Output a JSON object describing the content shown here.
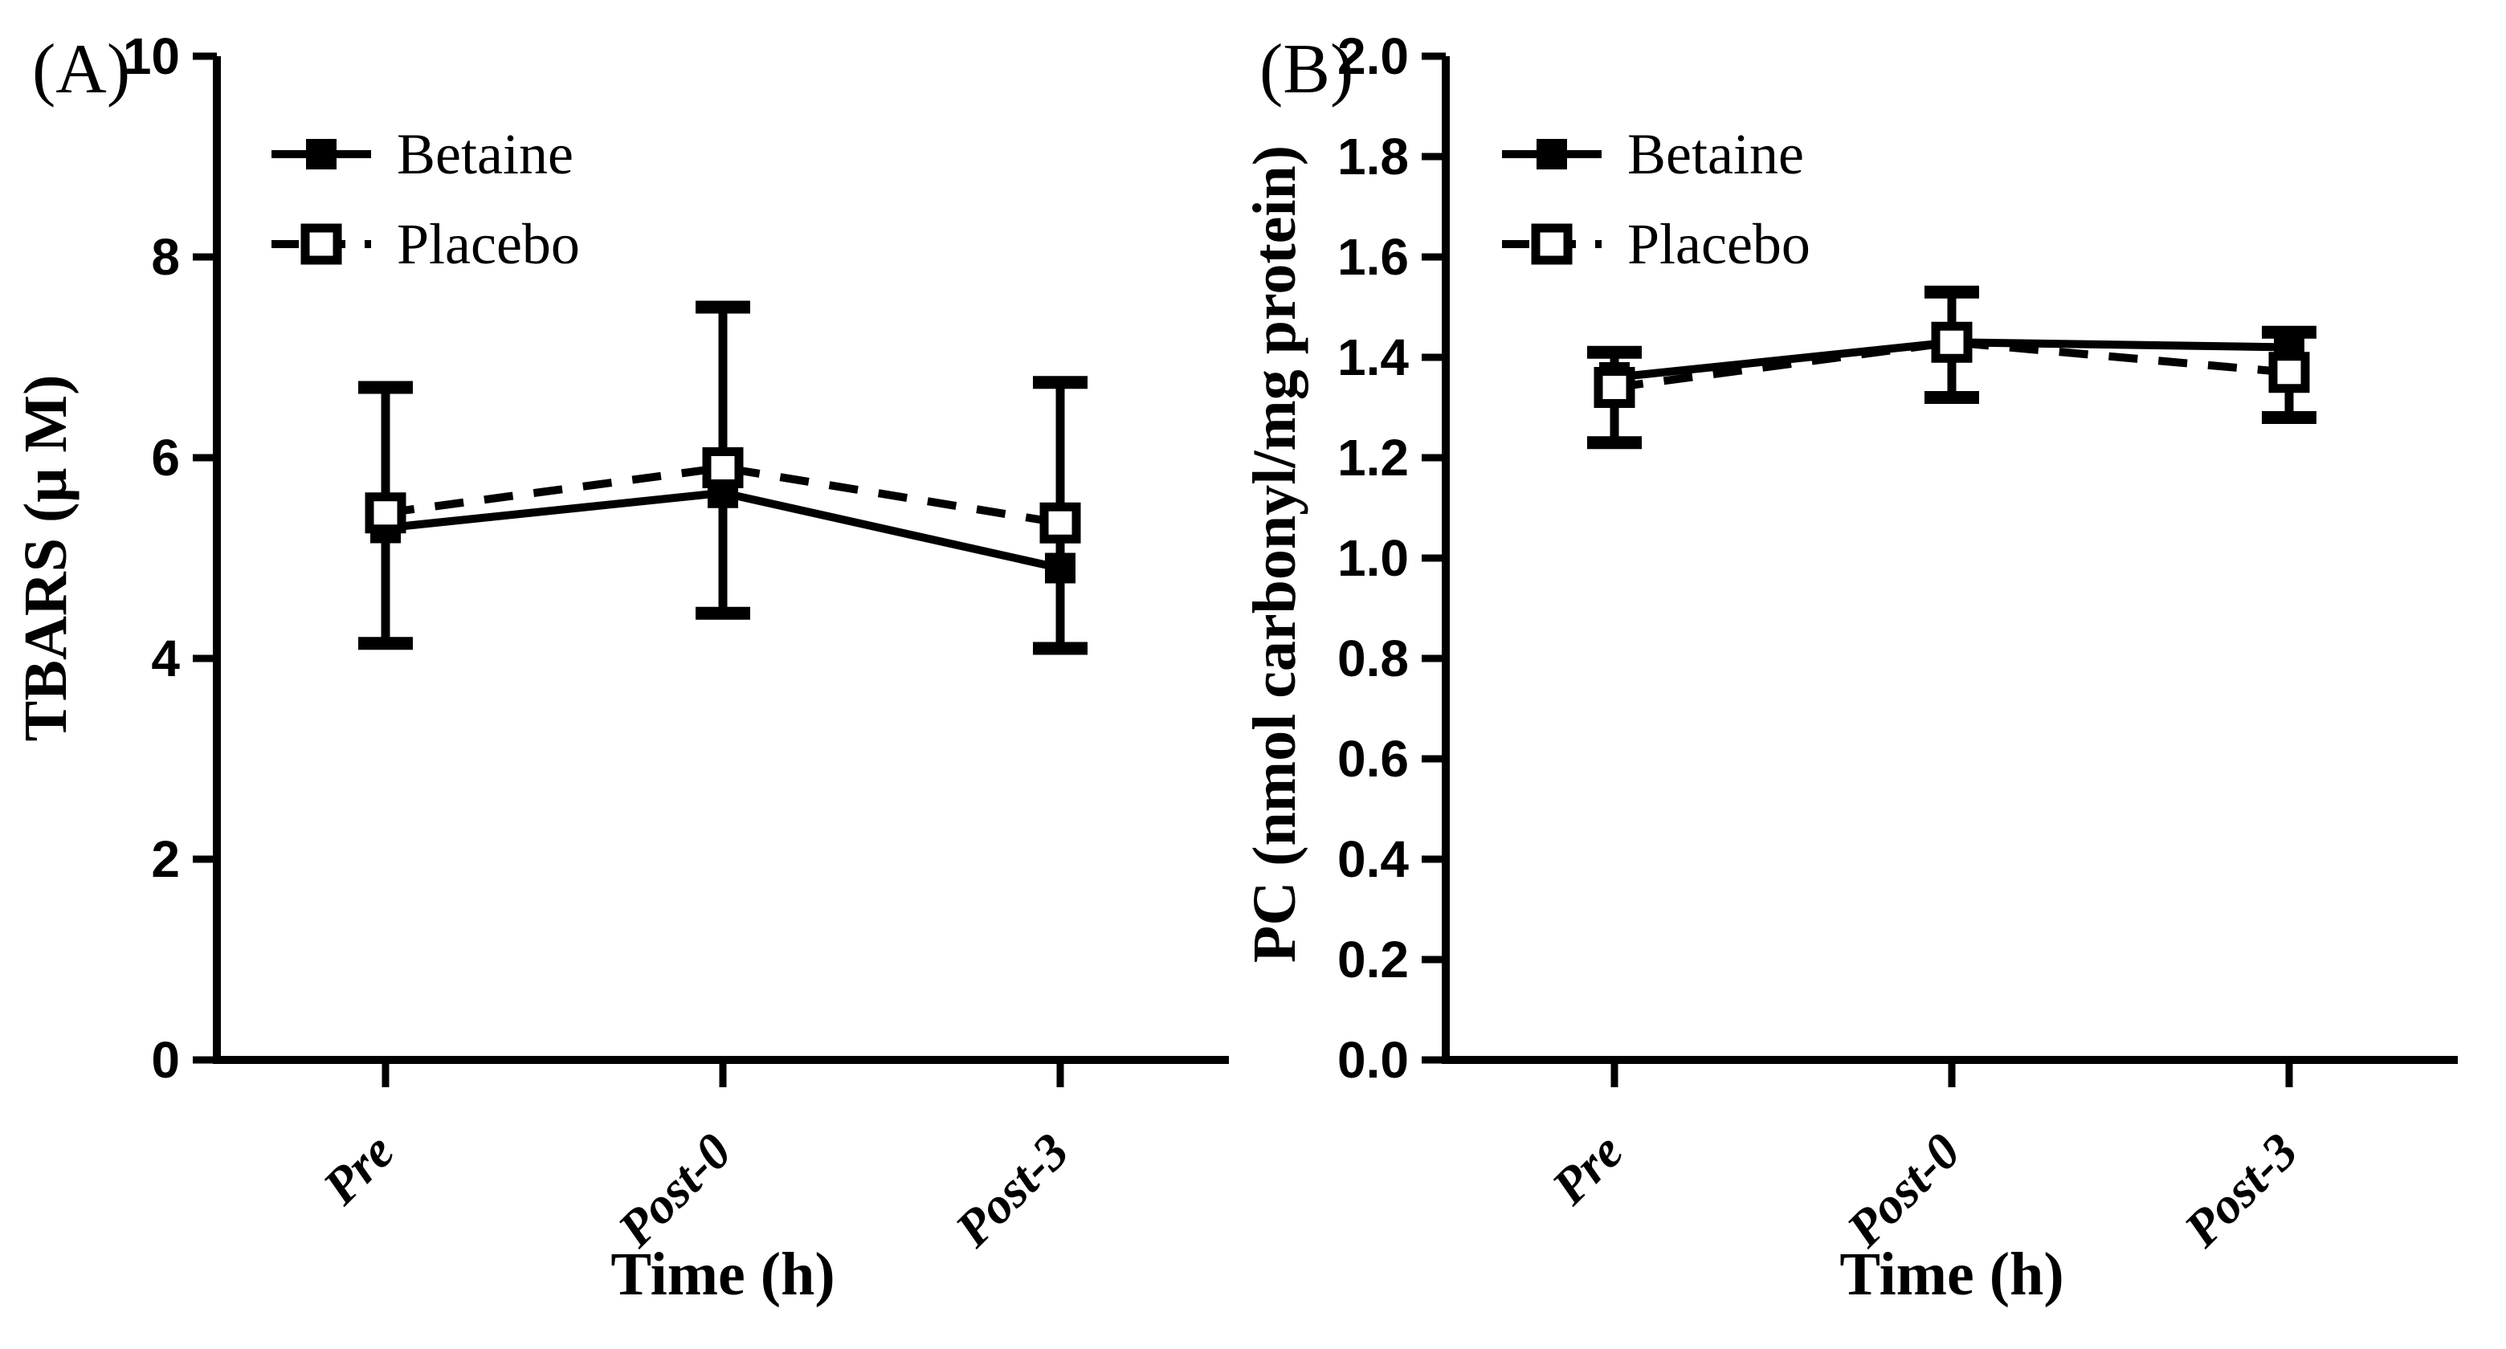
{
  "figure": {
    "background_color": "#ffffff",
    "ink_color": "#000000",
    "description": "Two-panel line chart comparing Betaine and Placebo over time"
  },
  "chart_data": [
    {
      "type": "line",
      "panel_label": "(A)",
      "xlabel": "Time (h)",
      "ylabel": "TBARS (μ M)",
      "categories": [
        "Pre",
        "Post-0",
        "Post-3"
      ],
      "ylim": [
        0,
        10
      ],
      "yticks": [
        0,
        2,
        4,
        6,
        8,
        10
      ],
      "ytick_labels": [
        "0",
        "2",
        "4",
        "6",
        "8",
        "10"
      ],
      "grid": false,
      "legend_position": "top-left-inside",
      "legend_entries": [
        "Betaine",
        "Placebo"
      ],
      "series": [
        {
          "name": "Betaine",
          "values": [
            5.3,
            5.65,
            4.9
          ],
          "marker": "filled-square",
          "line": "solid"
        },
        {
          "name": "Placebo",
          "values": [
            5.45,
            5.9,
            5.35
          ],
          "marker": "open-square",
          "line": "dashed"
        }
      ],
      "error_bars": [
        {
          "category": "Pre",
          "low": 4.15,
          "high": 6.7
        },
        {
          "category": "Post-0",
          "low": 4.45,
          "high": 7.5
        },
        {
          "category": "Post-3",
          "low": 4.1,
          "high": 6.75
        }
      ]
    },
    {
      "type": "line",
      "panel_label": "(B)",
      "xlabel": "Time (h)",
      "ylabel": "PC (nmol carbonyl/mg protein)",
      "categories": [
        "Pre",
        "Post-0",
        "Post-3"
      ],
      "ylim": [
        0,
        2.0
      ],
      "yticks": [
        0.0,
        0.2,
        0.4,
        0.6,
        0.8,
        1.0,
        1.2,
        1.4,
        1.6,
        1.8,
        2.0
      ],
      "ytick_labels": [
        "0.0",
        "0.2",
        "0.4",
        "0.6",
        "0.8",
        "1.0",
        "1.2",
        "1.4",
        "1.6",
        "1.8",
        "2.0"
      ],
      "grid": false,
      "legend_position": "top-left-inside",
      "legend_entries": [
        "Betaine",
        "Placebo"
      ],
      "series": [
        {
          "name": "Betaine",
          "values": [
            1.36,
            1.43,
            1.42
          ],
          "marker": "filled-square",
          "line": "solid"
        },
        {
          "name": "Placebo",
          "values": [
            1.34,
            1.43,
            1.37
          ],
          "marker": "open-square",
          "line": "dashed"
        }
      ],
      "error_bars": [
        {
          "category": "Pre",
          "low": 1.23,
          "high": 1.41
        },
        {
          "category": "Post-0",
          "low": 1.32,
          "high": 1.53
        },
        {
          "category": "Post-3",
          "low": 1.28,
          "high": 1.45
        }
      ]
    }
  ]
}
